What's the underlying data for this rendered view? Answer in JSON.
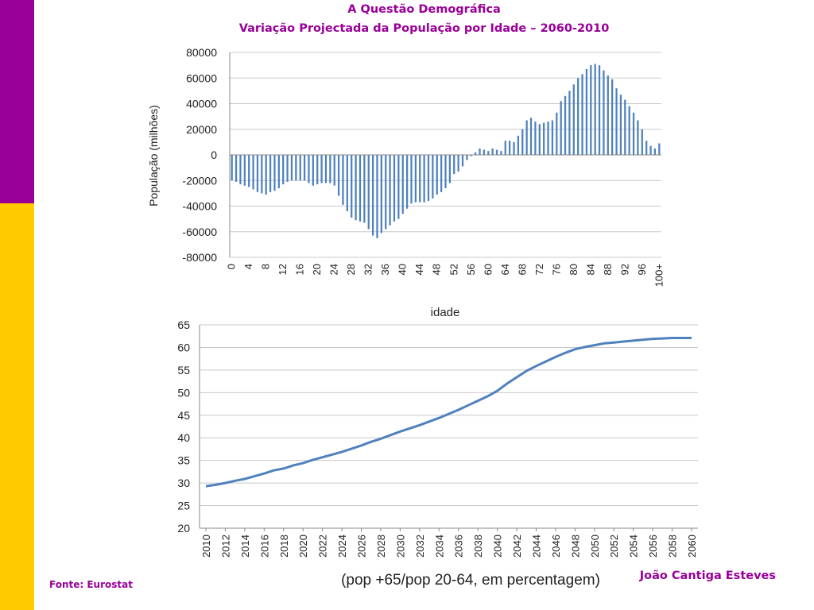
{
  "slide": {
    "title": "A Questão Demográfica",
    "subtitle": "Variação Projectada da População por Idade – 2060-2010",
    "source": "Fonte: Eurostat",
    "author": "João Cantiga Esteves",
    "colors": {
      "accent": "#990099",
      "sidebar_top": "#990099",
      "sidebar_bottom": "#ffcc00",
      "series": "#4f81bd"
    }
  },
  "chart_data": [
    {
      "type": "bar",
      "title": "",
      "xlabel": "idade",
      "ylabel": "População (milhões)",
      "ylim": [
        -80000,
        80000
      ],
      "yticks": [
        80000,
        60000,
        40000,
        20000,
        0,
        -20000,
        -40000,
        -60000,
        -80000
      ],
      "xtick_labels": [
        "0",
        "4",
        "8",
        "12",
        "16",
        "20",
        "24",
        "28",
        "32",
        "36",
        "40",
        "44",
        "48",
        "52",
        "56",
        "60",
        "64",
        "68",
        "72",
        "76",
        "80",
        "84",
        "88",
        "92",
        "96",
        "100+"
      ],
      "grid": true,
      "categories": [
        "0",
        "1",
        "2",
        "3",
        "4",
        "5",
        "6",
        "7",
        "8",
        "9",
        "10",
        "11",
        "12",
        "13",
        "14",
        "15",
        "16",
        "17",
        "18",
        "19",
        "20",
        "21",
        "22",
        "23",
        "24",
        "25",
        "26",
        "27",
        "28",
        "29",
        "30",
        "31",
        "32",
        "33",
        "34",
        "35",
        "36",
        "37",
        "38",
        "39",
        "40",
        "41",
        "42",
        "43",
        "44",
        "45",
        "46",
        "47",
        "48",
        "49",
        "50",
        "51",
        "52",
        "53",
        "54",
        "55",
        "56",
        "57",
        "58",
        "59",
        "60",
        "61",
        "62",
        "63",
        "64",
        "65",
        "66",
        "67",
        "68",
        "69",
        "70",
        "71",
        "72",
        "73",
        "74",
        "75",
        "76",
        "77",
        "78",
        "79",
        "80",
        "81",
        "82",
        "83",
        "84",
        "85",
        "86",
        "87",
        "88",
        "89",
        "90",
        "91",
        "92",
        "93",
        "94",
        "95",
        "96",
        "97",
        "98",
        "99",
        "100+"
      ],
      "values": [
        -20000,
        -21000,
        -23000,
        -24000,
        -25000,
        -27000,
        -29000,
        -30000,
        -31000,
        -29000,
        -28000,
        -26000,
        -23000,
        -21000,
        -20000,
        -20000,
        -20000,
        -20000,
        -22000,
        -24000,
        -23000,
        -22000,
        -22000,
        -22000,
        -24000,
        -32000,
        -39000,
        -44000,
        -49000,
        -51000,
        -52000,
        -53000,
        -58000,
        -63000,
        -65000,
        -61000,
        -58000,
        -55000,
        -52000,
        -50000,
        -46000,
        -42000,
        -38000,
        -37000,
        -37000,
        -37000,
        -36000,
        -34000,
        -31000,
        -29000,
        -26000,
        -22000,
        -15000,
        -13000,
        -9000,
        -4000,
        -1000,
        2000,
        5000,
        4000,
        3000,
        5000,
        4000,
        3000,
        11000,
        11000,
        10000,
        15000,
        20000,
        27000,
        29000,
        26000,
        24000,
        25000,
        26000,
        27000,
        33000,
        42000,
        46000,
        50000,
        55000,
        60000,
        63000,
        67000,
        70000,
        71000,
        70000,
        66000,
        62000,
        59000,
        52000,
        47000,
        43000,
        38000,
        33000,
        27000,
        20000,
        11000,
        7000,
        5000,
        9000
      ]
    },
    {
      "type": "line",
      "title": "",
      "xlabel": "(pop +65/pop 20-64, em percentagem)",
      "ylabel": "",
      "ylim": [
        20,
        65
      ],
      "yticks": [
        65,
        60,
        55,
        50,
        45,
        40,
        35,
        30,
        25,
        20
      ],
      "xtick_labels": [
        "2010",
        "2012",
        "2014",
        "2016",
        "2018",
        "2020",
        "2022",
        "2024",
        "2026",
        "2028",
        "2030",
        "2032",
        "2034",
        "2036",
        "2038",
        "2040",
        "2042",
        "2044",
        "2046",
        "2048",
        "2050",
        "2052",
        "2054",
        "2056",
        "2058",
        "2060"
      ],
      "grid": true,
      "x": [
        2010,
        2011,
        2012,
        2013,
        2014,
        2015,
        2016,
        2017,
        2018,
        2019,
        2020,
        2021,
        2022,
        2023,
        2024,
        2025,
        2026,
        2027,
        2028,
        2029,
        2030,
        2031,
        2032,
        2033,
        2034,
        2035,
        2036,
        2037,
        2038,
        2039,
        2040,
        2041,
        2042,
        2043,
        2044,
        2045,
        2046,
        2047,
        2048,
        2049,
        2050,
        2051,
        2052,
        2053,
        2054,
        2055,
        2056,
        2057,
        2058,
        2059,
        2060
      ],
      "values": [
        29.3,
        29.6,
        30.0,
        30.5,
        30.9,
        31.5,
        32.1,
        32.8,
        33.2,
        33.9,
        34.4,
        35.1,
        35.7,
        36.3,
        36.9,
        37.6,
        38.3,
        39.1,
        39.8,
        40.6,
        41.4,
        42.1,
        42.8,
        43.6,
        44.4,
        45.3,
        46.2,
        47.2,
        48.2,
        49.2,
        50.4,
        52.0,
        53.4,
        54.8,
        55.9,
        56.9,
        57.9,
        58.8,
        59.6,
        60.1,
        60.5,
        60.9,
        61.1,
        61.3,
        61.5,
        61.7,
        61.9,
        62.0,
        62.1,
        62.1,
        62.1
      ],
      "series": [
        {
          "values_ref": "values"
        }
      ]
    }
  ]
}
